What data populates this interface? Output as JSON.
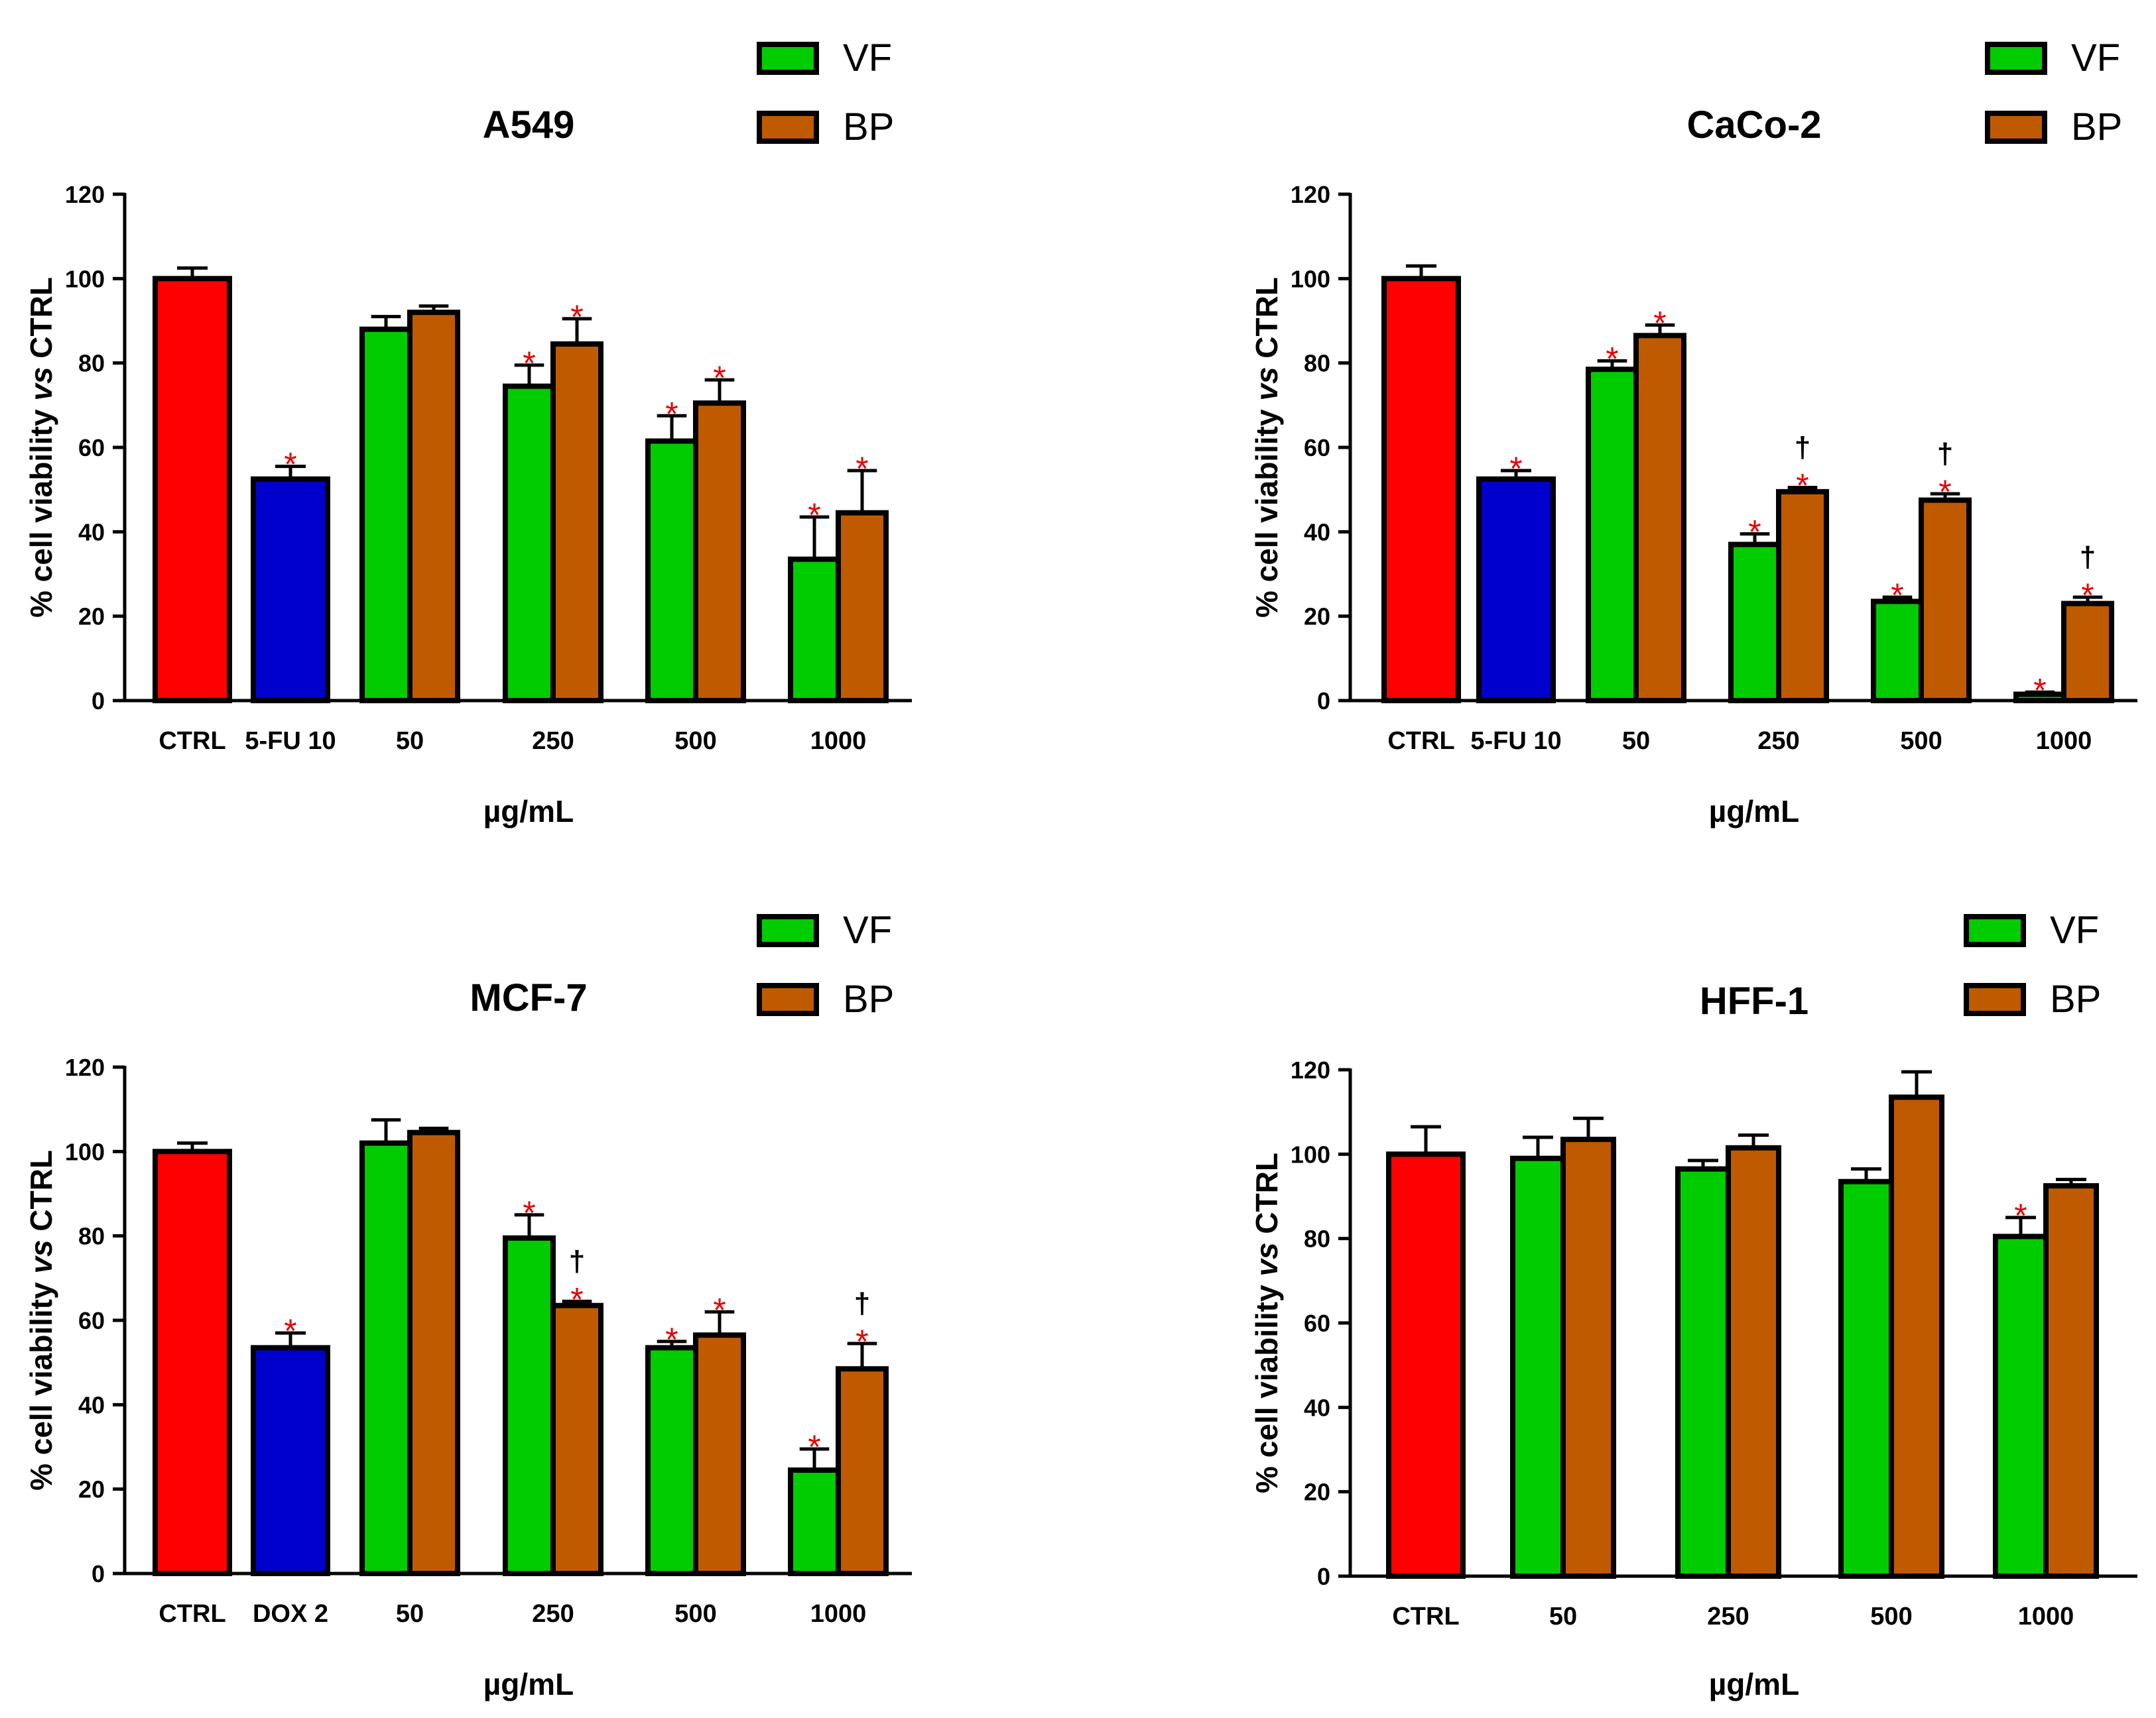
{
  "colors": {
    "CTRL": "#ff0000",
    "control": "#0000cc",
    "VF": "#00cc00",
    "BP": "#c05a00",
    "star": "#e60000",
    "dagger": "#000000"
  },
  "chart_data": [
    {
      "type": "bar",
      "title": "A549",
      "ylabel_parts": [
        "% cell viability ",
        "vs",
        " CTRL"
      ],
      "xlabel": "µg/mL",
      "ylim": [
        0,
        120
      ],
      "yticks": [
        "0",
        "20",
        "40",
        "60",
        "80",
        "100",
        "120"
      ],
      "legend": [
        "VF",
        "BP"
      ],
      "legend_position": "top-right",
      "groups": [
        {
          "label": "CTRL",
          "bars": [
            {
              "series": "CTRL",
              "value": 100,
              "err": 2.5,
              "marks": []
            }
          ]
        },
        {
          "label": "5-FU 10",
          "bars": [
            {
              "series": "control",
              "value": 52.5,
              "err": 3,
              "marks": [
                "*"
              ]
            }
          ]
        },
        {
          "label": "50",
          "bars": [
            {
              "series": "VF",
              "value": 88,
              "err": 3,
              "marks": []
            },
            {
              "series": "BP",
              "value": 92,
              "err": 1.5,
              "marks": []
            }
          ]
        },
        {
          "label": "250",
          "bars": [
            {
              "series": "VF",
              "value": 74.5,
              "err": 5,
              "marks": [
                "*"
              ]
            },
            {
              "series": "BP",
              "value": 84.5,
              "err": 6,
              "marks": [
                "*"
              ]
            }
          ]
        },
        {
          "label": "500",
          "bars": [
            {
              "series": "VF",
              "value": 61.5,
              "err": 6,
              "marks": [
                "*"
              ]
            },
            {
              "series": "BP",
              "value": 70.5,
              "err": 5.5,
              "marks": [
                "*"
              ]
            }
          ]
        },
        {
          "label": "1000",
          "bars": [
            {
              "series": "VF",
              "value": 33.5,
              "err": 10,
              "marks": [
                "*"
              ]
            },
            {
              "series": "BP",
              "value": 44.5,
              "err": 10,
              "marks": [
                "*"
              ]
            }
          ]
        }
      ]
    },
    {
      "type": "bar",
      "title": "CaCo-2",
      "ylabel_parts": [
        "% cell viability ",
        "vs",
        " CTRL"
      ],
      "xlabel": "µg/mL",
      "ylim": [
        0,
        120
      ],
      "yticks": [
        "0",
        "20",
        "40",
        "60",
        "80",
        "100",
        "120"
      ],
      "legend": [
        "VF",
        "BP"
      ],
      "legend_position": "top-right",
      "groups": [
        {
          "label": "CTRL",
          "bars": [
            {
              "series": "CTRL",
              "value": 100,
              "err": 3,
              "marks": []
            }
          ]
        },
        {
          "label": "5-FU 10",
          "bars": [
            {
              "series": "control",
              "value": 52.5,
              "err": 2,
              "marks": [
                "*"
              ]
            }
          ]
        },
        {
          "label": "50",
          "bars": [
            {
              "series": "VF",
              "value": 78.5,
              "err": 2,
              "marks": [
                "*"
              ]
            },
            {
              "series": "BP",
              "value": 86.5,
              "err": 2.5,
              "marks": [
                "*"
              ]
            }
          ]
        },
        {
          "label": "250",
          "bars": [
            {
              "series": "VF",
              "value": 37,
              "err": 2.5,
              "marks": [
                "*"
              ]
            },
            {
              "series": "BP",
              "value": 49.5,
              "err": 1,
              "marks": [
                "*",
                "†"
              ]
            }
          ]
        },
        {
          "label": "500",
          "bars": [
            {
              "series": "VF",
              "value": 23.5,
              "err": 1,
              "marks": [
                "*"
              ]
            },
            {
              "series": "BP",
              "value": 47.5,
              "err": 1.5,
              "marks": [
                "*",
                "†"
              ]
            }
          ]
        },
        {
          "label": "1000",
          "bars": [
            {
              "series": "VF",
              "value": 1.5,
              "err": 0.5,
              "marks": [
                "*"
              ]
            },
            {
              "series": "BP",
              "value": 23,
              "err": 1.5,
              "marks": [
                "*",
                "†"
              ]
            }
          ]
        }
      ]
    },
    {
      "type": "bar",
      "title": "MCF-7",
      "ylabel_parts": [
        "% cell viability ",
        "vs",
        " CTRL"
      ],
      "xlabel": "µg/mL",
      "ylim": [
        0,
        120
      ],
      "yticks": [
        "0",
        "20",
        "40",
        "60",
        "80",
        "100",
        "120"
      ],
      "legend": [
        "VF",
        "BP"
      ],
      "legend_position": "top-right",
      "groups": [
        {
          "label": "CTRL",
          "bars": [
            {
              "series": "CTRL",
              "value": 100,
              "err": 2,
              "marks": []
            }
          ]
        },
        {
          "label": "DOX 2",
          "bars": [
            {
              "series": "control",
              "value": 53.5,
              "err": 3.5,
              "marks": [
                "*"
              ]
            }
          ]
        },
        {
          "label": "50",
          "bars": [
            {
              "series": "VF",
              "value": 102,
              "err": 5.5,
              "marks": []
            },
            {
              "series": "BP",
              "value": 104.5,
              "err": 1,
              "marks": []
            }
          ]
        },
        {
          "label": "250",
          "bars": [
            {
              "series": "VF",
              "value": 79.5,
              "err": 5.5,
              "marks": [
                "*"
              ]
            },
            {
              "series": "BP",
              "value": 63.5,
              "err": 1,
              "marks": [
                "*",
                "†"
              ]
            }
          ]
        },
        {
          "label": "500",
          "bars": [
            {
              "series": "VF",
              "value": 53.5,
              "err": 1.5,
              "marks": [
                "*"
              ]
            },
            {
              "series": "BP",
              "value": 56.5,
              "err": 5.5,
              "marks": [
                "*"
              ]
            }
          ]
        },
        {
          "label": "1000",
          "bars": [
            {
              "series": "VF",
              "value": 24.5,
              "err": 5,
              "marks": [
                "*"
              ]
            },
            {
              "series": "BP",
              "value": 48.5,
              "err": 6,
              "marks": [
                "*",
                "†"
              ]
            }
          ]
        }
      ]
    },
    {
      "type": "bar",
      "title": "HFF-1",
      "ylabel_parts": [
        "% cell viability ",
        "vs",
        " CTRL"
      ],
      "xlabel": "µg/mL",
      "ylim": [
        0,
        120
      ],
      "yticks": [
        "0",
        "20",
        "40",
        "60",
        "80",
        "100",
        "120"
      ],
      "legend": [
        "VF",
        "BP"
      ],
      "legend_position": "top-right",
      "groups": [
        {
          "label": "CTRL",
          "bars": [
            {
              "series": "CTRL",
              "value": 100,
              "err": 6.5,
              "marks": []
            }
          ]
        },
        {
          "label": "50",
          "bars": [
            {
              "series": "VF",
              "value": 99,
              "err": 5,
              "marks": []
            },
            {
              "series": "BP",
              "value": 103.5,
              "err": 5,
              "marks": []
            }
          ]
        },
        {
          "label": "250",
          "bars": [
            {
              "series": "VF",
              "value": 96.5,
              "err": 2,
              "marks": []
            },
            {
              "series": "BP",
              "value": 101.5,
              "err": 3,
              "marks": []
            }
          ]
        },
        {
          "label": "500",
          "bars": [
            {
              "series": "VF",
              "value": 93.5,
              "err": 3,
              "marks": []
            },
            {
              "series": "BP",
              "value": 113.5,
              "err": 6,
              "marks": []
            }
          ]
        },
        {
          "label": "1000",
          "bars": [
            {
              "series": "VF",
              "value": 80.5,
              "err": 4.5,
              "marks": [
                "*"
              ]
            },
            {
              "series": "BP",
              "value": 92.5,
              "err": 1.5,
              "marks": []
            }
          ]
        }
      ]
    }
  ]
}
